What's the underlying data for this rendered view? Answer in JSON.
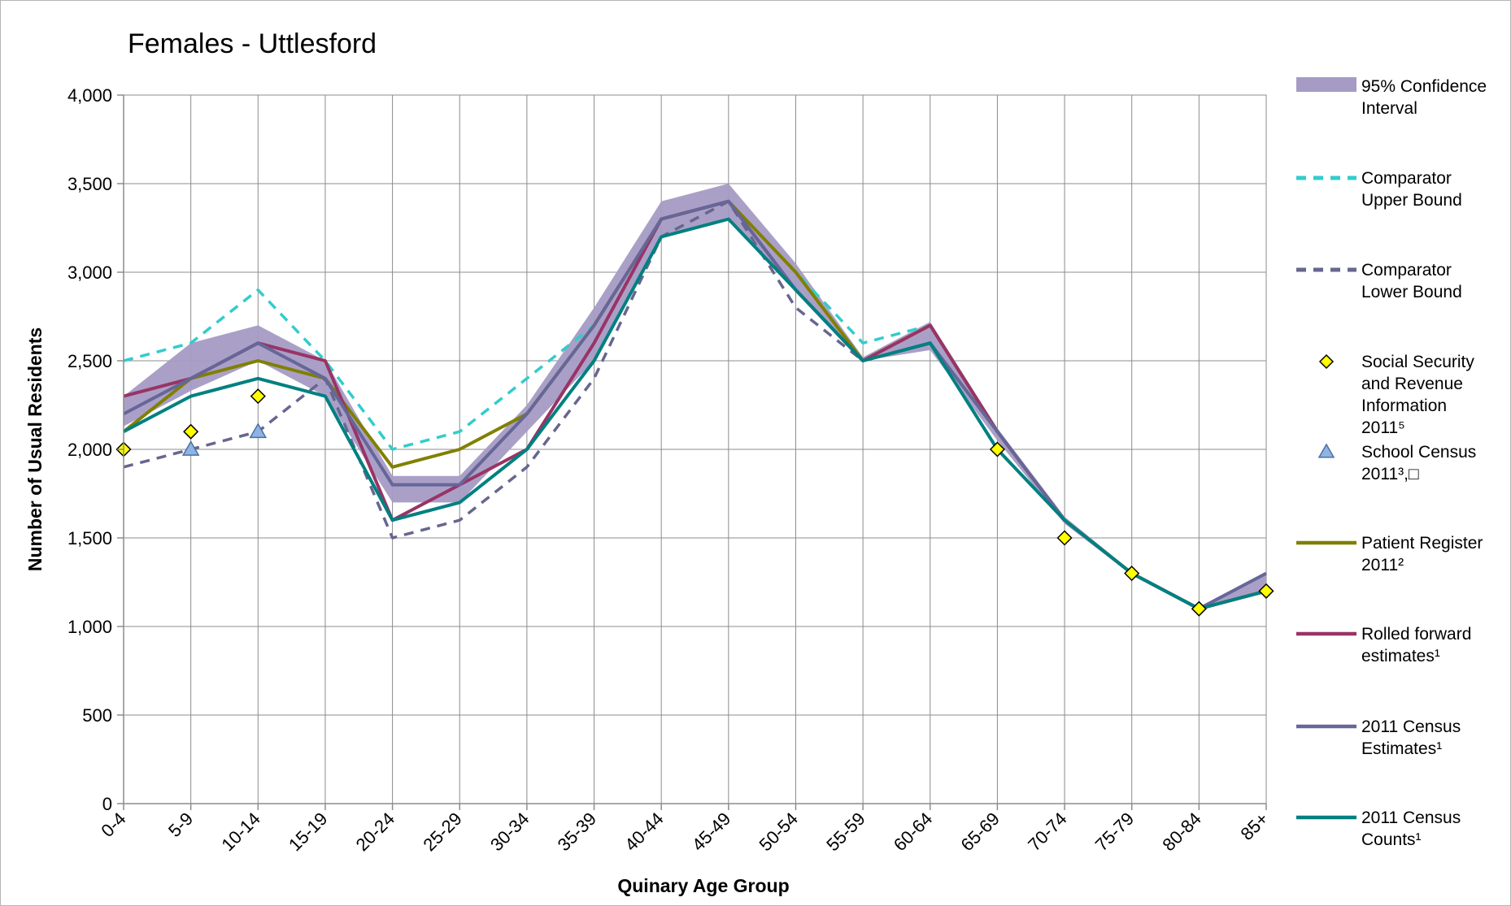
{
  "chart_data": {
    "type": "line",
    "title": "Females - Uttlesford",
    "xlabel": "Quinary Age Group",
    "ylabel": "Number of Usual Residents",
    "ylim": [
      0,
      4000
    ],
    "yticks": [
      0,
      500,
      1000,
      1500,
      2000,
      2500,
      3000,
      3500,
      4000
    ],
    "ytick_labels": [
      "0",
      "500",
      "1,000",
      "1,500",
      "2,000",
      "2,500",
      "3,000",
      "3,500",
      "4,000"
    ],
    "grid": true,
    "legend_position": "right",
    "categories": [
      "0-4",
      "5-9",
      "10-14",
      "15-19",
      "20-24",
      "25-29",
      "30-34",
      "35-39",
      "40-44",
      "45-49",
      "50-54",
      "55-59",
      "60-64",
      "65-69",
      "70-74",
      "75-79",
      "80-84",
      "85+"
    ],
    "confidence_interval": {
      "name": "95% Confidence Interval",
      "color": "#a59bc4",
      "lower": [
        2130,
        2330,
        2500,
        2300,
        1700,
        1700,
        2100,
        2500,
        3200,
        3310,
        2900,
        2500,
        2560,
        2050,
        1580,
        1290,
        1090,
        1190
      ],
      "upper": [
        2300,
        2600,
        2700,
        2500,
        1850,
        1850,
        2250,
        2800,
        3400,
        3500,
        3050,
        2520,
        2720,
        2120,
        1620,
        1310,
        1110,
        1310
      ]
    },
    "series": [
      {
        "name": "Comparator Upper Bound",
        "style": "dashed",
        "color": "#33cccc",
        "values": [
          2500,
          2600,
          2900,
          2500,
          2000,
          2100,
          2400,
          2700,
          3300,
          3400,
          3000,
          2600,
          2700,
          2100,
          1600,
          1300,
          1100,
          1300
        ]
      },
      {
        "name": "Comparator Lower Bound",
        "style": "dashed",
        "color": "#66668f",
        "values": [
          1900,
          2000,
          2100,
          2400,
          1500,
          1600,
          1900,
          2400,
          3200,
          3400,
          2800,
          2500,
          2600,
          2000,
          1600,
          1300,
          1100,
          1200
        ]
      },
      {
        "name": "Patient Register 2011²",
        "style": "solid",
        "color": "#808000",
        "values": [
          2100,
          2400,
          2500,
          2400,
          1900,
          2000,
          2200,
          2700,
          3300,
          3400,
          3000,
          2500,
          2700,
          2100,
          1600,
          1300,
          1100,
          1200
        ]
      },
      {
        "name": "Rolled forward estimates¹",
        "style": "solid",
        "color": "#993366",
        "values": [
          2300,
          2400,
          2600,
          2500,
          1600,
          1800,
          2000,
          2600,
          3300,
          3400,
          2900,
          2500,
          2700,
          2100,
          1600,
          1300,
          1100,
          1200
        ]
      },
      {
        "name": "2011 Census Estimates¹",
        "style": "solid",
        "color": "#666699",
        "values": [
          2200,
          2400,
          2600,
          2400,
          1800,
          1800,
          2200,
          2700,
          3300,
          3400,
          2900,
          2500,
          2600,
          2100,
          1600,
          1300,
          1100,
          1300
        ]
      },
      {
        "name": "2011 Census Counts¹",
        "style": "solid",
        "color": "#008080",
        "values": [
          2100,
          2300,
          2400,
          2300,
          1600,
          1700,
          2000,
          2500,
          3200,
          3300,
          2900,
          2500,
          2600,
          2000,
          1600,
          1300,
          1100,
          1200
        ]
      }
    ],
    "markers": [
      {
        "name": "Social Security and Revenue Information 2011⁵",
        "shape": "diamond",
        "color": "#ffff00",
        "points": [
          {
            "x": "0-4",
            "y": 2000
          },
          {
            "x": "5-9",
            "y": 2100
          },
          {
            "x": "10-14",
            "y": 2300
          },
          {
            "x": "65-69",
            "y": 2000
          },
          {
            "x": "70-74",
            "y": 1500
          },
          {
            "x": "75-79",
            "y": 1300
          },
          {
            "x": "80-84",
            "y": 1100
          },
          {
            "x": "85+",
            "y": 1200
          }
        ]
      },
      {
        "name": "School Census 2011³,□",
        "shape": "triangle",
        "color": "#8eb4e3",
        "points": [
          {
            "x": "5-9",
            "y": 2000
          },
          {
            "x": "10-14",
            "y": 2100
          }
        ]
      }
    ],
    "legend": [
      {
        "kind": "area",
        "key": "ci",
        "lines": [
          "95% Confidence",
          "Interval"
        ]
      },
      {
        "kind": "line",
        "key": "s0",
        "lines": [
          "Comparator",
          "Upper Bound"
        ]
      },
      {
        "kind": "line",
        "key": "s1",
        "lines": [
          "Comparator",
          "Lower Bound"
        ]
      },
      {
        "kind": "marker",
        "key": "m0",
        "lines": [
          "Social Security",
          "and Revenue",
          "Information",
          "2011⁵"
        ]
      },
      {
        "kind": "marker",
        "key": "m1",
        "lines": [
          "School Census",
          "2011³,□"
        ]
      },
      {
        "kind": "line",
        "key": "s2",
        "lines": [
          "Patient Register",
          "2011²"
        ]
      },
      {
        "kind": "line",
        "key": "s3",
        "lines": [
          "Rolled forward",
          "estimates¹"
        ]
      },
      {
        "kind": "line",
        "key": "s4",
        "lines": [
          "2011 Census",
          "Estimates¹"
        ]
      },
      {
        "kind": "line",
        "key": "s5",
        "lines": [
          "2011 Census",
          "Counts¹"
        ]
      }
    ]
  }
}
